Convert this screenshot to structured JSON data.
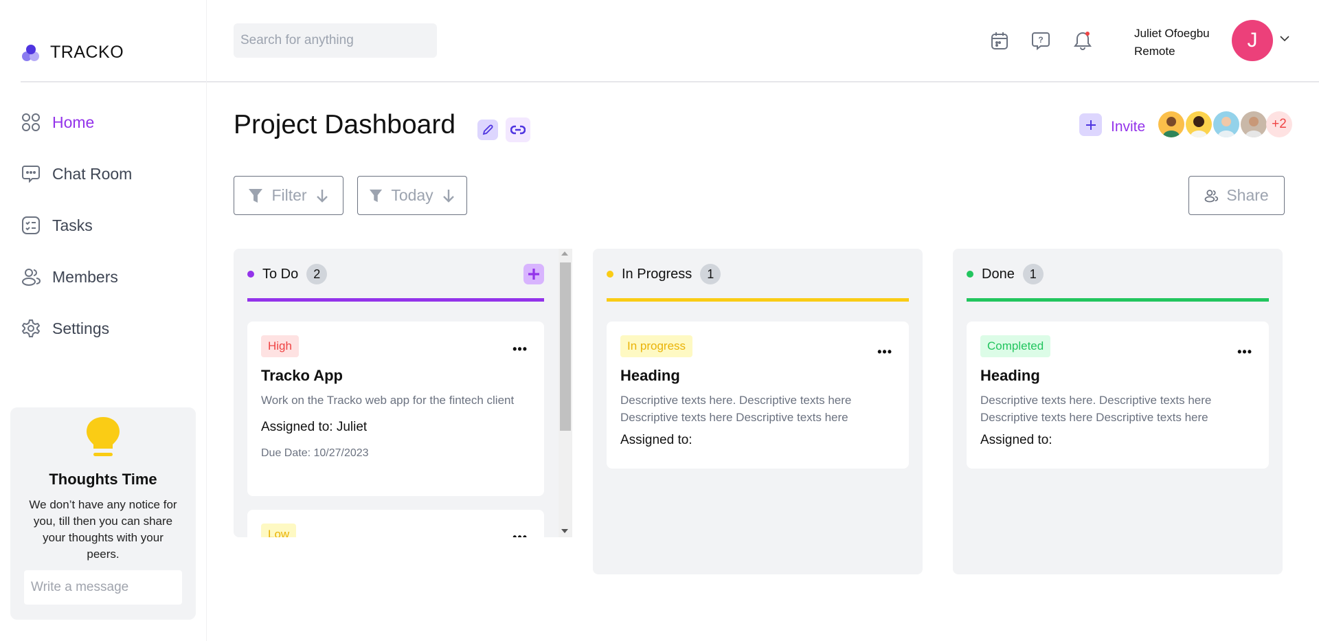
{
  "app": {
    "name": "TRACKO"
  },
  "sidebar": {
    "items": [
      {
        "label": "Home",
        "icon": "grid-icon",
        "active": true
      },
      {
        "label": "Chat Room",
        "icon": "chat-icon"
      },
      {
        "label": "Tasks",
        "icon": "tasks-icon"
      },
      {
        "label": "Members",
        "icon": "members-icon"
      },
      {
        "label": "Settings",
        "icon": "gear-icon"
      }
    ],
    "thoughts": {
      "title": "Thoughts Time",
      "text": "We don’t have any notice for you, till then you can share your thoughts with your peers.",
      "placeholder": "Write a message"
    }
  },
  "header": {
    "search_placeholder": "Search for anything",
    "user": {
      "name": "Juliet Ofoegbu",
      "role": "Remote",
      "initial": "J"
    },
    "notification_dot": true
  },
  "page": {
    "title": "Project Dashboard",
    "invite_label": "Invite",
    "extra_members": "+2",
    "filter_label": "Filter",
    "today_label": "Today",
    "share_label": "Share"
  },
  "colors": {
    "accent": "#9333ea",
    "todo": "#9333ea",
    "progress": "#facc15",
    "done": "#22c55e",
    "avatar": "#ec407a"
  },
  "columns": [
    {
      "title": "To Do",
      "count": "2",
      "cards": [
        {
          "badge": "High",
          "title": "Tracko App",
          "desc": "Work on the Tracko web app for the fintech client",
          "assigned": "Assigned to: Juliet",
          "due": "Due Date: 10/27/2023"
        },
        {
          "badge": "Low"
        }
      ]
    },
    {
      "title": "In Progress",
      "count": "1",
      "cards": [
        {
          "badge": "In progress",
          "title": "Heading",
          "desc": "Descriptive texts here. Descriptive texts here Descriptive texts here Descriptive texts here",
          "assigned": "Assigned to:"
        }
      ]
    },
    {
      "title": "Done",
      "count": "1",
      "cards": [
        {
          "badge": "Completed",
          "title": "Heading",
          "desc": "Descriptive texts here. Descriptive texts here Descriptive texts here Descriptive texts here",
          "assigned": "Assigned to:"
        }
      ]
    }
  ]
}
